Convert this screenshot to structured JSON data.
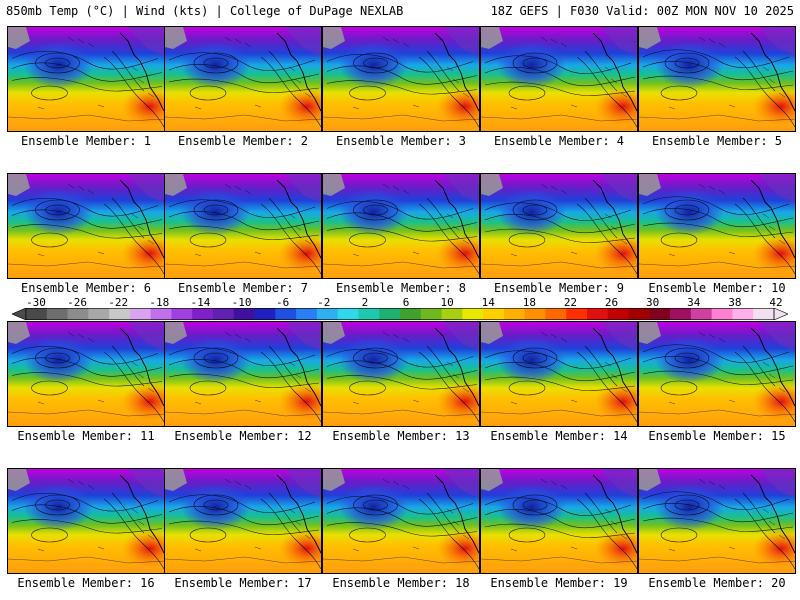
{
  "header": {
    "left": "850mb Temp (°C) | Wind (kts) | College of DuPage NEXLAB",
    "right": "18Z GEFS | F030 Valid: 00Z MON NOV 10 2025"
  },
  "colorbar": {
    "ticks": [
      "-30",
      "-26",
      "-22",
      "-18",
      "-14",
      "-10",
      "-6",
      "-2",
      "2",
      "6",
      "10",
      "14",
      "18",
      "22",
      "26",
      "30",
      "34",
      "38",
      "42"
    ],
    "colors": [
      "#4a4a4a",
      "#6e6e6e",
      "#8c8c8c",
      "#a8a8a8",
      "#c8c8c8",
      "#d9a3f0",
      "#c070e8",
      "#a040e0",
      "#8020c8",
      "#6020b0",
      "#4010a0",
      "#2020c0",
      "#2050e0",
      "#2a80f0",
      "#30b0f0",
      "#30d8e8",
      "#20c8b0",
      "#20b070",
      "#40a030",
      "#70b820",
      "#a8d010",
      "#e8e800",
      "#ffd000",
      "#ffb000",
      "#ff9000",
      "#ff6800",
      "#ff3000",
      "#e01010",
      "#c00000",
      "#a00000",
      "#800020",
      "#a01060",
      "#d040a0",
      "#ff80d0",
      "#ffb0e8",
      "#f0e0f0"
    ]
  },
  "panels": [
    {
      "label": "Ensemble Member: 1"
    },
    {
      "label": "Ensemble Member: 2"
    },
    {
      "label": "Ensemble Member: 3"
    },
    {
      "label": "Ensemble Member: 4"
    },
    {
      "label": "Ensemble Member: 5"
    },
    {
      "label": "Ensemble Member: 6"
    },
    {
      "label": "Ensemble Member: 7"
    },
    {
      "label": "Ensemble Member: 8"
    },
    {
      "label": "Ensemble Member: 9"
    },
    {
      "label": "Ensemble Member: 10"
    },
    {
      "label": "Ensemble Member: 11"
    },
    {
      "label": "Ensemble Member: 12"
    },
    {
      "label": "Ensemble Member: 13"
    },
    {
      "label": "Ensemble Member: 14"
    },
    {
      "label": "Ensemble Member: 15"
    },
    {
      "label": "Ensemble Member: 16"
    },
    {
      "label": "Ensemble Member: 17"
    },
    {
      "label": "Ensemble Member: 18"
    },
    {
      "label": "Ensemble Member: 19"
    },
    {
      "label": "Ensemble Member: 20"
    }
  ]
}
